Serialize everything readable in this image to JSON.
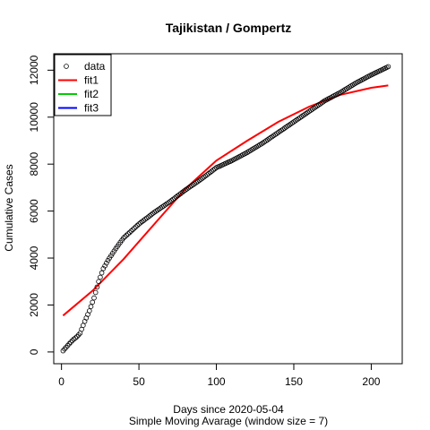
{
  "chart_data": {
    "type": "scatter",
    "title": "Tajikistan / Gompertz",
    "xlabel": "Days since 2020-05-04",
    "xlabel2": "Simple Moving Avarage (window size = 7)",
    "ylabel": "Cumulative Cases",
    "xlim": [
      -5,
      220
    ],
    "ylim": [
      -500,
      12700
    ],
    "xticks": [
      0,
      50,
      100,
      150,
      200
    ],
    "yticks": [
      0,
      2000,
      4000,
      6000,
      8000,
      10000,
      12000
    ],
    "grid": false,
    "legend_position": "top-left",
    "legend": [
      {
        "label": "data",
        "kind": "point",
        "color": "#000000"
      },
      {
        "label": "fit1",
        "kind": "line",
        "color": "#ff0000"
      },
      {
        "label": "fit2",
        "kind": "line",
        "color": "#00cd00"
      },
      {
        "label": "fit3",
        "kind": "line",
        "color": "#0000ff"
      }
    ],
    "series": [
      {
        "name": "data",
        "type": "scatter",
        "color": "#000000",
        "x": [
          1,
          5,
          8,
          10,
          12,
          15,
          18,
          21,
          24,
          27,
          30,
          35,
          40,
          50,
          60,
          70,
          80,
          90,
          95,
          100,
          110,
          120,
          130,
          140,
          150,
          160,
          170,
          180,
          190,
          200,
          211
        ],
        "y": [
          50,
          350,
          550,
          650,
          800,
          1300,
          1750,
          2300,
          3000,
          3550,
          3900,
          4400,
          4850,
          5450,
          5950,
          6400,
          6900,
          7350,
          7600,
          7850,
          8150,
          8500,
          8900,
          9350,
          9800,
          10250,
          10700,
          11050,
          11450,
          11800,
          12150
        ]
      },
      {
        "name": "fit1",
        "type": "line",
        "color": "#ff0000",
        "x": [
          1,
          20,
          40,
          60,
          80,
          100,
          120,
          140,
          160,
          180,
          200,
          211
        ],
        "y": [
          1550,
          2600,
          3950,
          5450,
          6950,
          8150,
          9000,
          9800,
          10450,
          10950,
          11250,
          11350
        ]
      }
    ]
  }
}
